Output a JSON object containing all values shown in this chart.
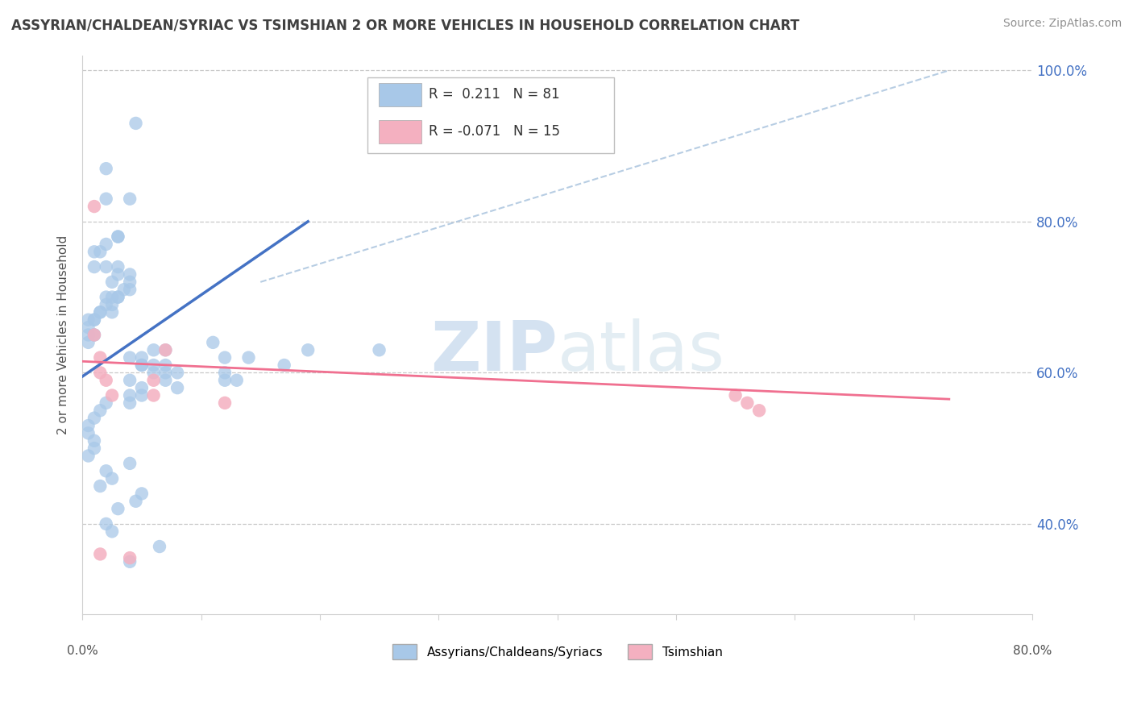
{
  "title": "ASSYRIAN/CHALDEAN/SYRIAC VS TSIMSHIAN 2 OR MORE VEHICLES IN HOUSEHOLD CORRELATION CHART",
  "source": "Source: ZipAtlas.com",
  "ylabel": "2 or more Vehicles in Household",
  "xmin": 0.0,
  "xmax": 0.8,
  "ymin": 0.28,
  "ymax": 1.02,
  "xtick_vals": [
    0.0,
    0.1,
    0.2,
    0.3,
    0.4,
    0.5,
    0.6,
    0.7,
    0.8
  ],
  "xtick_label_left": "0.0%",
  "xtick_label_right": "80.0%",
  "ytick_vals": [
    0.4,
    0.6,
    0.8,
    1.0
  ],
  "ytick_labels": [
    "40.0%",
    "60.0%",
    "80.0%",
    "100.0%"
  ],
  "legend_labels": [
    "Assyrians/Chaldeans/Syriacs",
    "Tsimshian"
  ],
  "r_blue": 0.211,
  "n_blue": 81,
  "r_pink": -0.071,
  "n_pink": 15,
  "blue_color": "#a8c8e8",
  "pink_color": "#f4b0c0",
  "line_blue": "#4472c4",
  "line_pink": "#f07090",
  "dashed_color": "#b0c8e0",
  "watermark_color": "#c8ddf0",
  "grid_color": "#c8c8c8",
  "bg_color": "#ffffff",
  "title_color": "#404040",
  "source_color": "#909090",
  "yaxis_color": "#4472c4",
  "blue_scatter_x": [
    0.02,
    0.04,
    0.02,
    0.03,
    0.03,
    0.02,
    0.01,
    0.015,
    0.01,
    0.02,
    0.03,
    0.03,
    0.025,
    0.04,
    0.04,
    0.035,
    0.04,
    0.03,
    0.03,
    0.025,
    0.02,
    0.025,
    0.02,
    0.025,
    0.015,
    0.015,
    0.01,
    0.01,
    0.005,
    0.005,
    0.01,
    0.005,
    0.01,
    0.005,
    0.06,
    0.07,
    0.14,
    0.19,
    0.25,
    0.11,
    0.04,
    0.05,
    0.05,
    0.05,
    0.06,
    0.12,
    0.17,
    0.06,
    0.08,
    0.07,
    0.07,
    0.07,
    0.12,
    0.12,
    0.04,
    0.13,
    0.08,
    0.05,
    0.05,
    0.04,
    0.04,
    0.02,
    0.015,
    0.01,
    0.005,
    0.005,
    0.01,
    0.01,
    0.005,
    0.04,
    0.02,
    0.025,
    0.015,
    0.05,
    0.045,
    0.03,
    0.02,
    0.025,
    0.065,
    0.04,
    0.045
  ],
  "blue_scatter_y": [
    0.87,
    0.83,
    0.83,
    0.78,
    0.78,
    0.77,
    0.76,
    0.76,
    0.74,
    0.74,
    0.74,
    0.73,
    0.72,
    0.73,
    0.72,
    0.71,
    0.71,
    0.7,
    0.7,
    0.7,
    0.7,
    0.69,
    0.69,
    0.68,
    0.68,
    0.68,
    0.67,
    0.67,
    0.67,
    0.66,
    0.65,
    0.65,
    0.65,
    0.64,
    0.63,
    0.63,
    0.62,
    0.63,
    0.63,
    0.64,
    0.62,
    0.62,
    0.61,
    0.61,
    0.61,
    0.62,
    0.61,
    0.6,
    0.6,
    0.6,
    0.61,
    0.59,
    0.6,
    0.59,
    0.59,
    0.59,
    0.58,
    0.58,
    0.57,
    0.57,
    0.56,
    0.56,
    0.55,
    0.54,
    0.53,
    0.52,
    0.51,
    0.5,
    0.49,
    0.48,
    0.47,
    0.46,
    0.45,
    0.44,
    0.43,
    0.42,
    0.4,
    0.39,
    0.37,
    0.35,
    0.93
  ],
  "pink_scatter_x": [
    0.01,
    0.01,
    0.015,
    0.015,
    0.02,
    0.025,
    0.06,
    0.06,
    0.07,
    0.12,
    0.55,
    0.56,
    0.57,
    0.015,
    0.04
  ],
  "pink_scatter_y": [
    0.82,
    0.65,
    0.62,
    0.6,
    0.59,
    0.57,
    0.59,
    0.57,
    0.63,
    0.56,
    0.57,
    0.56,
    0.55,
    0.36,
    0.355
  ],
  "blue_line_x": [
    0.0,
    0.19
  ],
  "blue_line_y": [
    0.595,
    0.8
  ],
  "pink_line_x": [
    0.0,
    0.73
  ],
  "pink_line_y": [
    0.615,
    0.565
  ],
  "dashed_line_x": [
    0.15,
    0.73
  ],
  "dashed_line_y": [
    0.72,
    1.0
  ]
}
